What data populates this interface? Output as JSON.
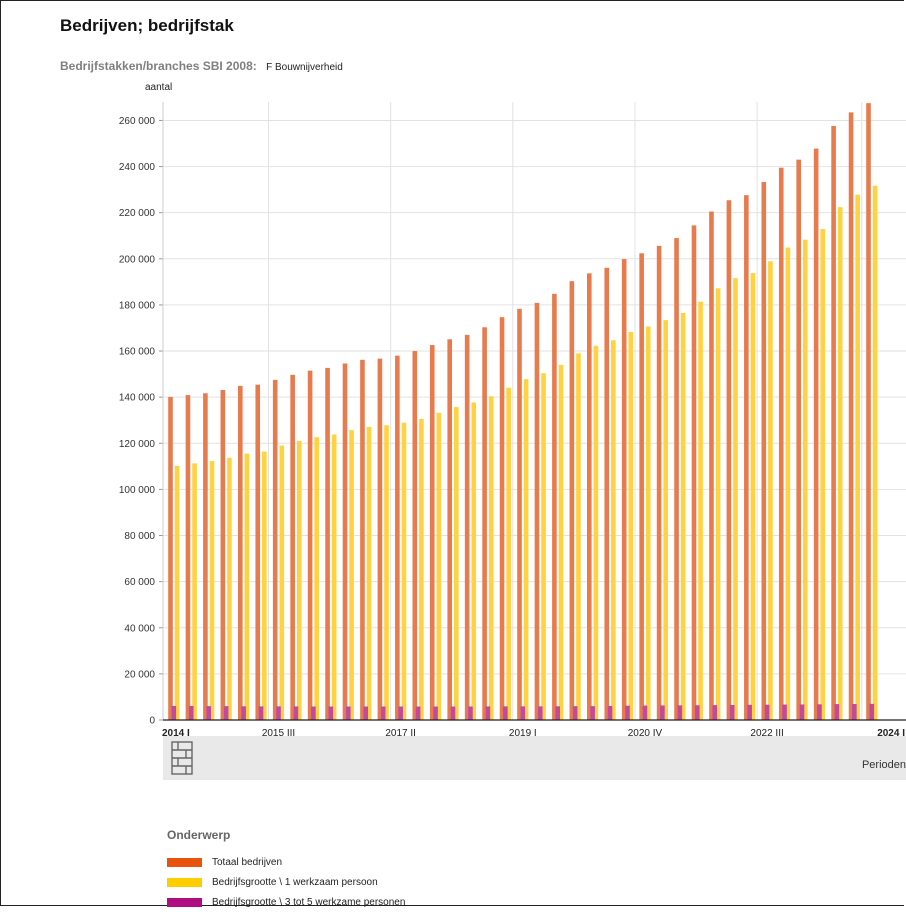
{
  "page": {
    "title": "Bedrijven; bedrijfstak",
    "filter_label": "Bedrijfstakken/branches SBI 2008:",
    "filter_value": "F Bouwnijverheid",
    "logo_icon": "cbs-logo-icon"
  },
  "chart_data": {
    "type": "bar",
    "ylabel": "aantal",
    "xlabel": "Perioden",
    "ylim": [
      0,
      268000
    ],
    "y_ticks": [
      "0",
      "20 000",
      "40 000",
      "60 000",
      "80 000",
      "100 000",
      "120 000",
      "140 000",
      "160 000",
      "180 000",
      "200 000",
      "220 000",
      "240 000",
      "260 000"
    ],
    "y_tick_values": [
      0,
      20000,
      40000,
      60000,
      80000,
      100000,
      120000,
      140000,
      160000,
      180000,
      200000,
      220000,
      240000,
      260000
    ],
    "x_tick_labels": [
      {
        "index": 0,
        "label": "2014 I",
        "bold": true
      },
      {
        "index": 6,
        "label": "2015 III",
        "bold": false
      },
      {
        "index": 13,
        "label": "2017 II",
        "bold": false
      },
      {
        "index": 20,
        "label": "2019 I",
        "bold": false
      },
      {
        "index": 27,
        "label": "2020 IV",
        "bold": false
      },
      {
        "index": 34,
        "label": "2022 III",
        "bold": false
      },
      {
        "index": 40,
        "label": "2024 I",
        "bold": true
      }
    ],
    "grid": true,
    "legend_title": "Onderwerp",
    "legend_position": "bottom",
    "categories": [
      "2014 I",
      "2014 II",
      "2014 III",
      "2014 IV",
      "2015 I",
      "2015 II",
      "2015 III",
      "2015 IV",
      "2016 I",
      "2016 II",
      "2016 III",
      "2016 IV",
      "2017 I",
      "2017 II",
      "2017 III",
      "2017 IV",
      "2018 I",
      "2018 II",
      "2018 III",
      "2018 IV",
      "2019 I",
      "2019 II",
      "2019 III",
      "2019 IV",
      "2020 I",
      "2020 II",
      "2020 III",
      "2020 IV",
      "2021 I",
      "2021 II",
      "2021 III",
      "2021 IV",
      "2022 I",
      "2022 II",
      "2022 III",
      "2022 IV",
      "2023 I",
      "2023 II",
      "2023 III",
      "2023 IV",
      "2024 I"
    ],
    "series": [
      {
        "name": "Totaal bedrijven",
        "legend_color": "#e8530e",
        "bar_color": "#e77b4e",
        "values": [
          140100,
          140900,
          141700,
          143100,
          144900,
          145400,
          147500,
          149700,
          151500,
          152700,
          154600,
          156200,
          156700,
          158000,
          160000,
          162600,
          165100,
          167000,
          170300,
          174700,
          178300,
          180900,
          184800,
          190300,
          193700,
          196100,
          199900,
          202400,
          205600,
          209000,
          214500,
          220500,
          225400,
          227600,
          233300,
          239500,
          243000,
          247800,
          257600,
          263500,
          267500
        ]
      },
      {
        "name": "Bedrijfsgrootte \\ 1 werkzaam persoon",
        "legend_color": "#ffcc00",
        "bar_color": "#ffd23f",
        "values": [
          110200,
          111300,
          112300,
          113700,
          115500,
          116400,
          119000,
          121000,
          122600,
          123800,
          125700,
          127100,
          127800,
          128900,
          130600,
          133200,
          135700,
          137700,
          140400,
          144100,
          147800,
          150400,
          154000,
          159000,
          162300,
          164700,
          168300,
          170600,
          173400,
          176500,
          181400,
          187200,
          191600,
          193800,
          198900,
          204900,
          208300,
          212900,
          222400,
          227800,
          231700
        ]
      },
      {
        "name": "Bedrijfsgrootte \\ 3 tot 5 werkzame personen",
        "legend_color": "#af0e80",
        "bar_color": "#c04a9e",
        "values": [
          6100,
          6100,
          6000,
          6000,
          5950,
          5900,
          5900,
          5900,
          5850,
          5850,
          5850,
          5850,
          5850,
          5850,
          5850,
          5850,
          5850,
          5850,
          5900,
          5900,
          5900,
          5900,
          5950,
          6000,
          6000,
          6100,
          6200,
          6250,
          6300,
          6350,
          6400,
          6450,
          6500,
          6600,
          6650,
          6700,
          6750,
          6800,
          6900,
          6950,
          7000
        ]
      }
    ]
  }
}
